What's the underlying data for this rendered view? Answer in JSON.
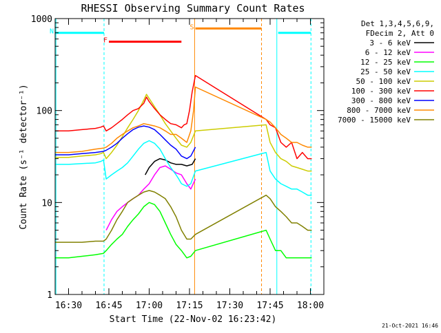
{
  "chart_data": {
    "type": "line",
    "title": "RHESSI Observing Summary Count Rates",
    "xlabel": "Start Time (22-Nov-02 16:23:42)",
    "ylabel": "Count Rate (s⁻¹ detector⁻¹)",
    "footer": "21-Oct-2021 16:46",
    "x_unit": "minutes of day (UT)",
    "xlim": [
      985,
      1085
    ],
    "ylim": [
      1,
      1000
    ],
    "y_scale": "log",
    "x_ticks": [
      {
        "value": 990,
        "label": "16:30"
      },
      {
        "value": 1005,
        "label": "16:45"
      },
      {
        "value": 1020,
        "label": "17:00"
      },
      {
        "value": 1035,
        "label": "17:15"
      },
      {
        "value": 1050,
        "label": "17:30"
      },
      {
        "value": 1065,
        "label": "17:45"
      },
      {
        "value": 1080,
        "label": "18:00"
      }
    ],
    "y_ticks": [
      {
        "value": 1,
        "label": "1"
      },
      {
        "value": 10,
        "label": "10"
      },
      {
        "value": 100,
        "label": "100"
      },
      {
        "value": 1000,
        "label": "1000"
      }
    ],
    "legend": {
      "header": [
        "Det 1,3,4,5,6,9,",
        "FDecim 2, Att 0"
      ],
      "placement": "right"
    },
    "series": [
      {
        "name": "3 - 6 keV",
        "color": "#000000",
        "x": [
          1018.5,
          1020,
          1022,
          1024,
          1026,
          1028,
          1030,
          1032,
          1034,
          1036,
          1037.2
        ],
        "y": [
          20,
          24,
          28,
          30,
          29,
          27,
          26,
          26,
          25,
          26,
          30
        ]
      },
      {
        "name": "6 - 12 keV",
        "color": "#ff00ff",
        "x": [
          1004,
          1006,
          1008,
          1010,
          1012,
          1014,
          1016,
          1018,
          1020,
          1022,
          1024,
          1026,
          1028,
          1030,
          1032,
          1034,
          1035.5,
          1037.2
        ],
        "y": [
          5,
          6.5,
          8,
          9,
          10,
          11,
          12,
          14,
          16,
          20,
          24,
          25,
          23,
          21,
          20,
          16,
          14,
          18
        ]
      },
      {
        "name": "12 - 25 keV",
        "color": "#00ff00",
        "x": [
          985,
          990,
          995,
          1000,
          1003,
          1004,
          1006,
          1008,
          1010,
          1012,
          1014,
          1016,
          1018,
          1020,
          1022,
          1024,
          1026,
          1028,
          1030,
          1032,
          1034,
          1035.5,
          1037.2,
          1063.5,
          1065,
          1067,
          1069,
          1071,
          1073,
          1075,
          1077,
          1079,
          1080.5
        ],
        "y": [
          2.5,
          2.5,
          2.6,
          2.7,
          2.8,
          3,
          3.5,
          4,
          4.5,
          5.5,
          6.5,
          7.5,
          9,
          10,
          9.5,
          8,
          6,
          4.5,
          3.5,
          3,
          2.5,
          2.6,
          3,
          5,
          4,
          3,
          3,
          2.5,
          2.5,
          2.5,
          2.5,
          2.5,
          2.5
        ]
      },
      {
        "name": "25 - 50 keV",
        "color": "#00ffff",
        "x": [
          985,
          990,
          995,
          1000,
          1002,
          1003,
          1004,
          1006,
          1008,
          1010,
          1012,
          1014,
          1016,
          1018,
          1020,
          1022,
          1024,
          1026,
          1028,
          1030,
          1031,
          1032,
          1034,
          1035.5,
          1037.2,
          1063.5,
          1065,
          1067,
          1069,
          1071,
          1073,
          1075,
          1077,
          1079,
          1080.5
        ],
        "y": [
          26,
          26,
          26.5,
          27,
          28,
          29,
          18,
          20,
          22,
          24,
          27,
          32,
          38,
          44,
          47,
          44,
          38,
          30,
          24,
          20,
          18,
          16,
          15,
          16,
          22,
          35,
          22,
          18,
          16,
          15,
          14,
          14,
          13,
          12,
          12
        ]
      },
      {
        "name": "50 - 100 keV",
        "color": "#cccc00",
        "x": [
          985,
          990,
          995,
          1000,
          1002,
          1003,
          1004,
          1006,
          1008,
          1010,
          1012,
          1014,
          1016,
          1018,
          1019,
          1020,
          1022,
          1024,
          1026,
          1028,
          1030,
          1032,
          1034,
          1035.5,
          1037.2,
          1063.5,
          1065,
          1067,
          1069,
          1071,
          1073,
          1075,
          1077,
          1079,
          1080.5
        ],
        "y": [
          31,
          31,
          32,
          33,
          34,
          35,
          30,
          35,
          42,
          52,
          65,
          80,
          100,
          130,
          150,
          135,
          110,
          90,
          72,
          60,
          50,
          42,
          40,
          45,
          60,
          70,
          45,
          35,
          30,
          28,
          25,
          24,
          23,
          22,
          22
        ]
      },
      {
        "name": "100 - 300 keV",
        "color": "#ff0000",
        "x": [
          985,
          990,
          995,
          1000,
          1002,
          1003,
          1004,
          1006,
          1008,
          1010,
          1012,
          1014,
          1016,
          1018,
          1019,
          1020,
          1022,
          1024,
          1026,
          1028,
          1030,
          1032,
          1033,
          1034,
          1035,
          1036,
          1037.2,
          1063.5,
          1065,
          1067,
          1069,
          1071,
          1073,
          1075,
          1077,
          1079,
          1080.5
        ],
        "y": [
          60,
          60,
          62,
          64,
          66,
          68,
          60,
          65,
          72,
          80,
          90,
          100,
          105,
          120,
          140,
          125,
          105,
          90,
          80,
          72,
          70,
          65,
          70,
          72,
          100,
          160,
          240,
          80,
          70,
          65,
          45,
          40,
          45,
          30,
          35,
          30,
          30
        ]
      },
      {
        "name": "300 - 800 keV",
        "color": "#0000ff",
        "x": [
          985,
          990,
          995,
          1000,
          1003,
          1004,
          1006,
          1008,
          1010,
          1012,
          1014,
          1016,
          1018,
          1020,
          1022,
          1024,
          1026,
          1028,
          1030,
          1032,
          1034,
          1035.5,
          1037.2
        ],
        "y": [
          33,
          33,
          34,
          35,
          36,
          37,
          40,
          44,
          50,
          56,
          62,
          66,
          68,
          66,
          62,
          55,
          48,
          42,
          38,
          32,
          30,
          32,
          40
        ]
      },
      {
        "name": "800 - 7000 keV",
        "color": "#ff8800",
        "x": [
          985,
          990,
          995,
          1000,
          1003,
          1004,
          1006,
          1008,
          1010,
          1012,
          1014,
          1016,
          1018,
          1020,
          1022,
          1024,
          1026,
          1028,
          1030,
          1032,
          1034,
          1035.5,
          1036.5,
          1037.2,
          1063.5,
          1065,
          1067,
          1069,
          1071,
          1073,
          1075,
          1077,
          1079,
          1080.5
        ],
        "y": [
          35,
          35,
          36,
          38,
          39,
          40,
          44,
          50,
          55,
          60,
          65,
          68,
          72,
          70,
          68,
          65,
          60,
          55,
          55,
          50,
          45,
          60,
          100,
          180,
          80,
          75,
          65,
          55,
          50,
          45,
          45,
          42,
          40,
          40
        ]
      },
      {
        "name": "7000 - 15000 keV",
        "color": "#808000",
        "x": [
          985,
          990,
          995,
          1000,
          1003,
          1004,
          1006,
          1008,
          1010,
          1012,
          1014,
          1016,
          1018,
          1020,
          1022,
          1024,
          1026,
          1028,
          1030,
          1032,
          1034,
          1035.5,
          1037.2,
          1063.5,
          1065,
          1067,
          1069,
          1071,
          1073,
          1075,
          1077,
          1079,
          1080.5
        ],
        "y": [
          3.7,
          3.7,
          3.7,
          3.8,
          3.8,
          4,
          5,
          6.5,
          8,
          10,
          11,
          12,
          13,
          13.5,
          13,
          12,
          11,
          9,
          7,
          5,
          4,
          4,
          4.5,
          12,
          11,
          9,
          8,
          7,
          6,
          6,
          5.5,
          5,
          5
        ]
      }
    ],
    "flags": [
      {
        "label": "N",
        "color": "#00ffff",
        "segments": [
          [
            985,
            1003.2
          ],
          [
            1068,
            1080.2
          ]
        ],
        "y": 700
      },
      {
        "label": "F",
        "color": "#ff0000",
        "segments": [
          [
            1005,
            1032
          ]
        ],
        "y": 560
      },
      {
        "label": "S",
        "color": "#ff8800",
        "segments": [
          [
            1037.2,
            1061.8
          ]
        ],
        "y": 780
      }
    ],
    "vertical_lines": [
      {
        "x": 1003.2,
        "color": "#00ffff",
        "style": "dashed"
      },
      {
        "x": 1080.2,
        "color": "#00ffff",
        "style": "dashed"
      },
      {
        "x": 1061.8,
        "color": "#ff8800",
        "style": "dashed"
      },
      {
        "x": 985.3,
        "color": "#00ffff",
        "style": "solid"
      },
      {
        "x": 1067.5,
        "color": "#00ffff",
        "style": "solid"
      },
      {
        "x": 1036.9,
        "color": "#ff8800",
        "style": "solid"
      }
    ]
  }
}
